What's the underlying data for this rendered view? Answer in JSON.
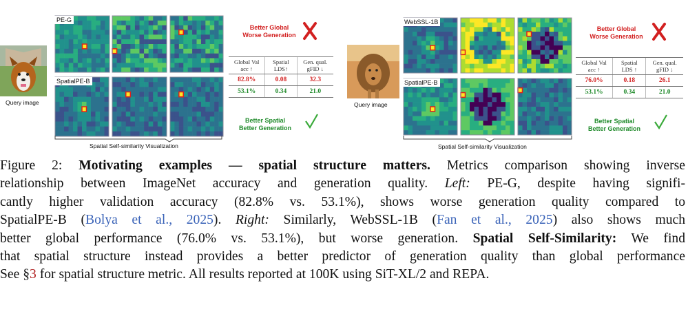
{
  "figure": {
    "left": {
      "query_label": "Query image",
      "row_labels": [
        "PE-G",
        "SpatialPE-B"
      ],
      "bracket_label": "Spatial Self-similarity Visualization",
      "callout_bad": [
        "Better Global",
        "Worse Generation"
      ],
      "callout_good": [
        "Better Spatial",
        "Better Generation"
      ],
      "table": {
        "headers": [
          "Global Val acc ↑",
          "Spatial LDS↑",
          "Gen. qual. gFID ↓"
        ],
        "rows": [
          [
            "82.8%",
            "0.08",
            "32.3"
          ],
          [
            "53.1%",
            "0.34",
            "21.0"
          ]
        ]
      }
    },
    "right": {
      "query_label": "Query image",
      "row_labels": [
        "WebSSL-1B",
        "SpatialPE-B"
      ],
      "bracket_label": "Spatial Self-similarity Visualization",
      "callout_bad": [
        "Better Global",
        "Worse Generation"
      ],
      "callout_good": [
        "Better Spatial",
        "Better Generation"
      ],
      "table": {
        "headers": [
          "Global Val acc ↑",
          "Spatial LDS ↑",
          "Gen. qual. gFID ↓"
        ],
        "rows": [
          [
            "76.0%",
            "0.18",
            "26.1"
          ],
          [
            "53.1%",
            "0.34",
            "21.0"
          ]
        ]
      }
    },
    "colors": {
      "bad": "#d22020",
      "good": "#1f8a2a"
    }
  },
  "caption": {
    "label": "Figure 2: ",
    "title": "Motivating examples — spatial structure matters.",
    "l1_rest": " Metrics comparison showing inverse",
    "l2": "relationship between ImageNet accuracy and generation quality. ",
    "l2_left": "Left:",
    "l2_rest": " PE-G, despite having signifi-",
    "l3": "cantly higher validation accuracy (82.8% vs. 53.1%), shows worse generation quality compared to",
    "l4_a": "SpatialPE-B (",
    "cite1": "Bolya et al., 2025",
    "l4_b": "). ",
    "l4_right": "Right:",
    "l4_c": " Similarly, WebSSL-1B (",
    "cite2": "Fan et al., 2025",
    "l4_d": ") also shows much",
    "l5_a": "better global performance (76.0% vs. 53.1%), but worse generation. ",
    "l5_bold": "Spatial Self-Similarity:",
    "l5_b": " We find",
    "l6": "that spatial structure instead provides a better predictor of generation quality than global performance",
    "l7_a": "See §",
    "sec": "3",
    "l7_b": " for spatial structure metric. All results reported at 100K using SiT-XL/2 and REPA."
  }
}
